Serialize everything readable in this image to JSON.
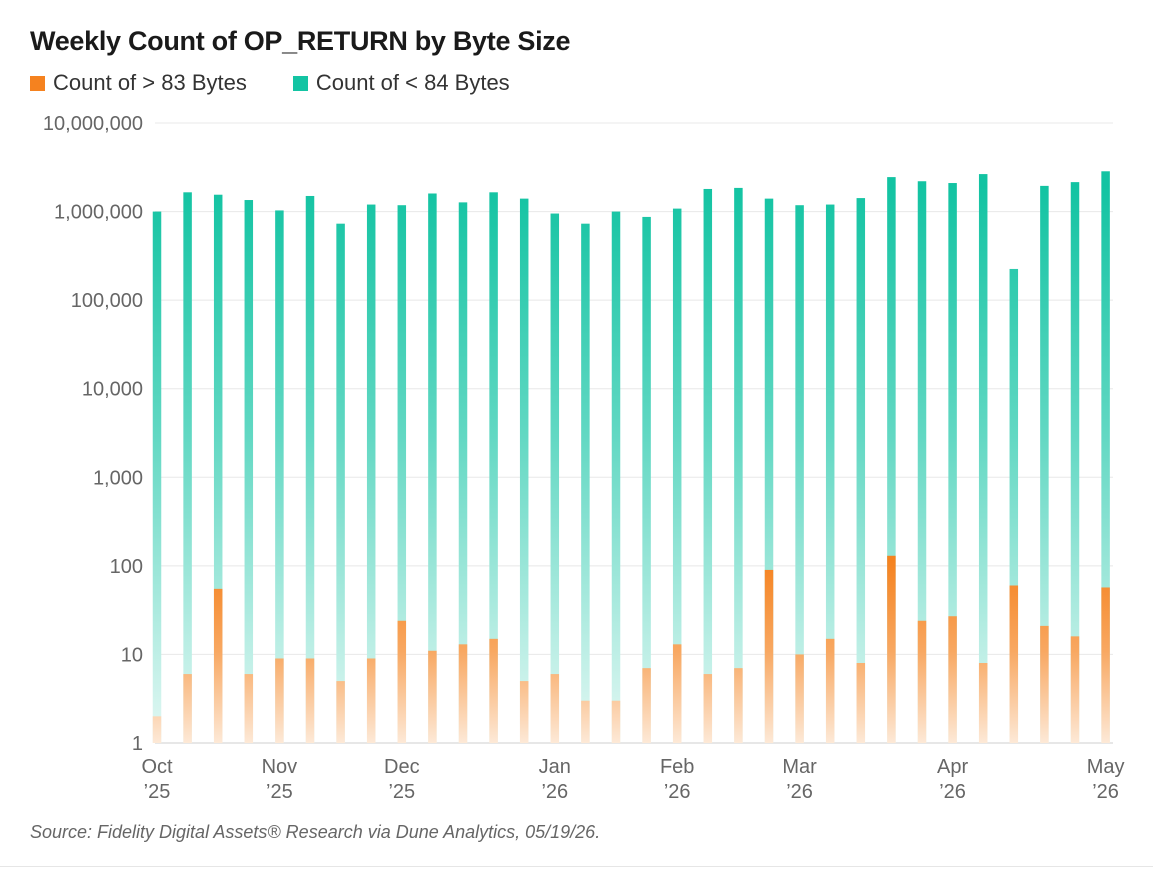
{
  "chart_data": {
    "type": "bar",
    "title": "Weekly Count of OP_RETURN by Byte Size",
    "yscale": "log",
    "ylim": [
      1,
      10000000
    ],
    "yticks": [
      {
        "value": 1,
        "label": "1"
      },
      {
        "value": 10,
        "label": "10"
      },
      {
        "value": 100,
        "label": "100"
      },
      {
        "value": 1000,
        "label": "1,000"
      },
      {
        "value": 10000,
        "label": "10,000"
      },
      {
        "value": 100000,
        "label": "100,000"
      },
      {
        "value": 1000000,
        "label": "1,000,000"
      },
      {
        "value": 10000000,
        "label": "10,000,000"
      }
    ],
    "xticks": [
      {
        "index": 0,
        "month": "Oct",
        "year": "’25"
      },
      {
        "index": 4,
        "month": "Nov",
        "year": "’25"
      },
      {
        "index": 8,
        "month": "Dec",
        "year": "’25"
      },
      {
        "index": 13,
        "month": "Jan",
        "year": "’26"
      },
      {
        "index": 17,
        "month": "Feb",
        "year": "’26"
      },
      {
        "index": 21,
        "month": "Mar",
        "year": "’26"
      },
      {
        "index": 26,
        "month": "Apr",
        "year": "’26"
      },
      {
        "index": 31,
        "month": "May",
        "year": "’26"
      }
    ],
    "grid": true,
    "legend_position": "top-left",
    "series": [
      {
        "name": "Count of > 83 Bytes",
        "color": "#F5821F",
        "values": [
          2,
          6,
          55,
          6,
          9,
          9,
          5,
          9,
          24,
          11,
          13,
          15,
          5,
          6,
          3,
          3,
          7,
          13,
          6,
          7,
          90,
          10,
          15,
          8,
          130,
          24,
          27,
          8,
          60,
          21,
          16,
          57
        ]
      },
      {
        "name": "Count of < 84 Bytes",
        "color": "#13C4A3",
        "values": [
          1000000,
          1650000,
          1550000,
          1350000,
          1030000,
          1500000,
          730000,
          1200000,
          1180000,
          1600000,
          1270000,
          1650000,
          1400000,
          950000,
          730000,
          1000000,
          870000,
          1080000,
          1800000,
          1850000,
          1400000,
          1180000,
          1200000,
          1420000,
          2450000,
          2200000,
          2100000,
          2650000,
          225000,
          1950000,
          2150000,
          2850000
        ]
      }
    ]
  },
  "source": "Source: Fidelity Digital Assets® Research via Dune Analytics, 05/19/26."
}
